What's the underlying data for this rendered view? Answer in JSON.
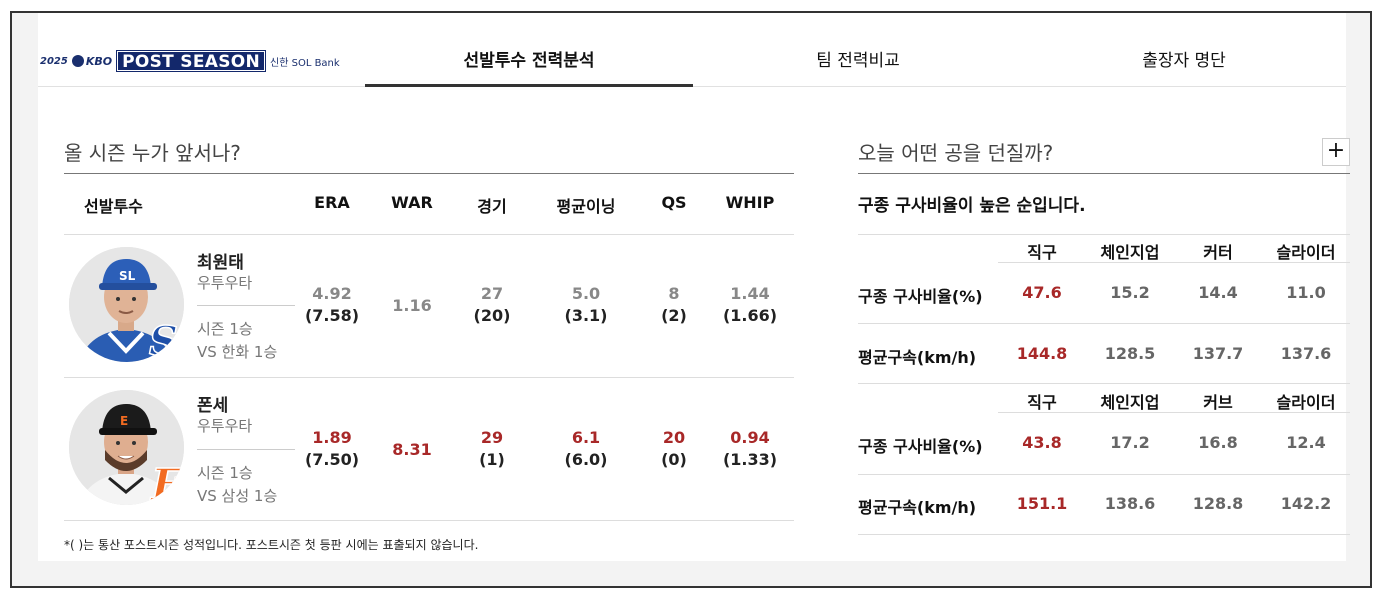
{
  "header": {
    "logo": {
      "year": "2025",
      "league": "KBO",
      "title": "POST SEASON",
      "sponsor": "신한 SOL Bank"
    },
    "tabs": [
      {
        "label": "선발투수 전력분석",
        "active": true
      },
      {
        "label": "팀 전력비교",
        "active": false
      },
      {
        "label": "출장자 명단",
        "active": false
      }
    ]
  },
  "starters": {
    "title": "올 시즌 누가 앞서나?",
    "columns": [
      "선발투수",
      "ERA",
      "WAR",
      "경기",
      "평균이닝",
      "QS",
      "WHIP"
    ],
    "players": [
      {
        "name": "최원태",
        "hand": "우투우타",
        "record1": "시즌 1승",
        "record2": "VS 한화 1승",
        "team_logo": "SL",
        "cap_color": "#2c5fb8",
        "logo_color": "#1e4fa8",
        "era": "4.92",
        "era_career": "(7.58)",
        "war": "1.16",
        "games": "27",
        "games_career": "(20)",
        "avg_inn": "5.0",
        "avg_inn_career": "(3.1)",
        "qs": "8",
        "qs_career": "(2)",
        "whip": "1.44",
        "whip_career": "(1.66)",
        "highlight": "grey"
      },
      {
        "name": "폰세",
        "hand": "우투우타",
        "record1": "시즌 1승",
        "record2": "VS 삼성 1승",
        "team_logo": "E",
        "cap_color": "#1b1b1b",
        "logo_color": "#f26b21",
        "era": "1.89",
        "era_career": "(7.50)",
        "war": "8.31",
        "games": "29",
        "games_career": "(1)",
        "avg_inn": "6.1",
        "avg_inn_career": "(6.0)",
        "qs": "20",
        "qs_career": "(0)",
        "whip": "0.94",
        "whip_career": "(1.33)",
        "highlight": "red"
      }
    ],
    "footnote": "*( )는 통산 포스트시즌 성적입니다. 포스트시즌 첫 등판 시에는 표출되지 않습니다."
  },
  "pitches": {
    "title": "오늘 어떤 공을 던질까?",
    "expand_label": "+",
    "subtitle": "구종 구사비율이 높은 순입니다.",
    "tables": [
      {
        "types": [
          "직구",
          "체인지업",
          "커터",
          "슬라이더"
        ],
        "ratio_label": "구종 구사비율(%)",
        "ratios": [
          "47.6",
          "15.2",
          "14.4",
          "11.0"
        ],
        "speed_label": "평균구속(km/h)",
        "speeds": [
          "144.8",
          "128.5",
          "137.7",
          "137.6"
        ]
      },
      {
        "types": [
          "직구",
          "체인지업",
          "커브",
          "슬라이더"
        ],
        "ratio_label": "구종 구사비율(%)",
        "ratios": [
          "43.8",
          "17.2",
          "16.8",
          "12.4"
        ],
        "speed_label": "평균구속(km/h)",
        "speeds": [
          "151.1",
          "138.6",
          "128.8",
          "142.2"
        ]
      }
    ]
  }
}
